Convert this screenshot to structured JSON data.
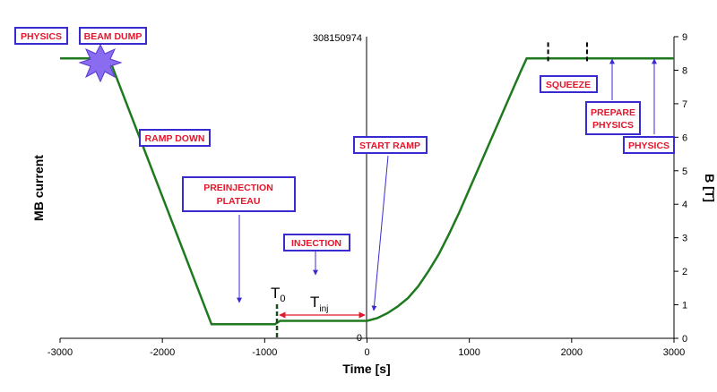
{
  "chart_data": {
    "type": "line",
    "title": "",
    "xlabel": "Time [s]",
    "ylabel_left": "MB current",
    "ylabel_right": "B [T]",
    "xlim": [
      -3000,
      3000
    ],
    "ylim": [
      0,
      9
    ],
    "x_ticks": [
      -3000,
      -2000,
      -1000,
      0,
      1000,
      2000,
      3000
    ],
    "x_tick_labels": [
      "-3000",
      "-2000",
      "-1000",
      "0",
      "1000",
      "2000",
      "3000"
    ],
    "y_ticks": [
      0,
      1,
      2,
      3,
      4,
      5,
      6,
      7,
      8,
      9
    ],
    "y_tick_labels": [
      "0",
      "1",
      "2",
      "3",
      "4",
      "5",
      "6",
      "7",
      "8",
      "9"
    ],
    "grid": false,
    "series": [
      {
        "color": "#1f7a1f",
        "x": [
          -3000,
          -2520,
          -1520,
          -900,
          -850,
          0,
          100,
          200,
          300,
          400,
          500,
          600,
          700,
          800,
          900,
          1000,
          1100,
          1200,
          1300,
          1400,
          1500,
          1560,
          3000
        ],
        "y": [
          8.35,
          8.35,
          0.42,
          0.42,
          0.52,
          0.52,
          0.6,
          0.75,
          0.95,
          1.2,
          1.55,
          2.0,
          2.5,
          3.1,
          3.75,
          4.45,
          5.15,
          5.85,
          6.55,
          7.25,
          7.95,
          8.35,
          8.35
        ]
      }
    ],
    "top_left_value": "308150974",
    "axis_zero_label": "0",
    "squeeze_markers_x": [
      1770,
      2150
    ],
    "t0_x": -880,
    "annotations": [
      {
        "id": "physics-start",
        "lines": [
          "PHYSICS"
        ]
      },
      {
        "id": "beam-dump",
        "lines": [
          "BEAM DUMP"
        ]
      },
      {
        "id": "ramp-down",
        "lines": [
          "RAMP DOWN"
        ]
      },
      {
        "id": "preinjection",
        "lines": [
          "PREINJECTION",
          "PLATEAU"
        ]
      },
      {
        "id": "injection",
        "lines": [
          "INJECTION"
        ]
      },
      {
        "id": "start-ramp",
        "lines": [
          "START RAMP"
        ]
      },
      {
        "id": "squeeze",
        "lines": [
          "SQUEEZE"
        ]
      },
      {
        "id": "prepare-physics",
        "lines": [
          "PREPARE",
          "PHYSICS"
        ]
      },
      {
        "id": "physics-end",
        "lines": [
          "PHYSICS"
        ]
      }
    ],
    "t0_label": "T",
    "t0_sub": "0",
    "tinj_label": "T",
    "tinj_sub": "inj",
    "colors": {
      "line": "#1f7a1f",
      "box_border": "#3a2bd0",
      "box_text": "#e3162b",
      "arrow": "#3a2bd0",
      "tinj_arrow": "#e3162b",
      "burst": "#8a6cf0"
    }
  }
}
